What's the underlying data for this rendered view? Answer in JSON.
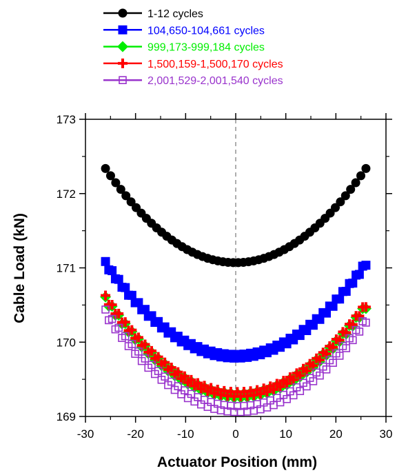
{
  "chart_data": {
    "type": "scatter",
    "xlabel": "Actuator Position (mm)",
    "ylabel": "Cable Load (kN)",
    "xlim": [
      -30,
      30
    ],
    "ylim": [
      169,
      173
    ],
    "xticks": [
      "-30",
      "-20",
      "-10",
      "0",
      "10",
      "20",
      "30"
    ],
    "yticks": [
      "169",
      "170",
      "171",
      "172",
      "173"
    ],
    "reference_line": {
      "x": 0,
      "style": "dashed"
    },
    "grid": false,
    "legend_position": "top",
    "series": [
      {
        "name": "1-12 cycles",
        "color": "#000000",
        "marker": "filled-circle",
        "vertex_x": 0,
        "vertex_y": 171.07,
        "curvature": 0.001875,
        "x_start": -26,
        "x_end": 26,
        "n_points": 52,
        "band": 0.0
      },
      {
        "name": "104,650-104,661 cycles",
        "color": "#0000ff",
        "marker": "filled-square",
        "vertex_x": 0,
        "vertex_y": 169.81,
        "curvature": 0.00185,
        "x_start": -26,
        "x_end": 26,
        "n_points": 80,
        "band": 0.05
      },
      {
        "name": "999,173-999,184 cycles",
        "color": "#00ee00",
        "marker": "filled-diamond",
        "vertex_x": 0.5,
        "vertex_y": 169.28,
        "curvature": 0.00185,
        "x_start": -26,
        "x_end": 26,
        "n_points": 80,
        "band": 0.06
      },
      {
        "name": "1,500,159-1,500,170 cycles",
        "color": "#ff0000",
        "marker": "plus",
        "vertex_x": 0.5,
        "vertex_y": 169.3,
        "curvature": 0.00185,
        "x_start": -26,
        "x_end": 26,
        "n_points": 80,
        "band": 0.06
      },
      {
        "name": "2,001,529-2,001,540 cycles",
        "color": "#9933cc",
        "marker": "open-square",
        "vertex_x": 0.5,
        "vertex_y": 169.1,
        "curvature": 0.00185,
        "x_start": -26,
        "x_end": 26,
        "n_points": 80,
        "band": 0.08
      }
    ]
  }
}
